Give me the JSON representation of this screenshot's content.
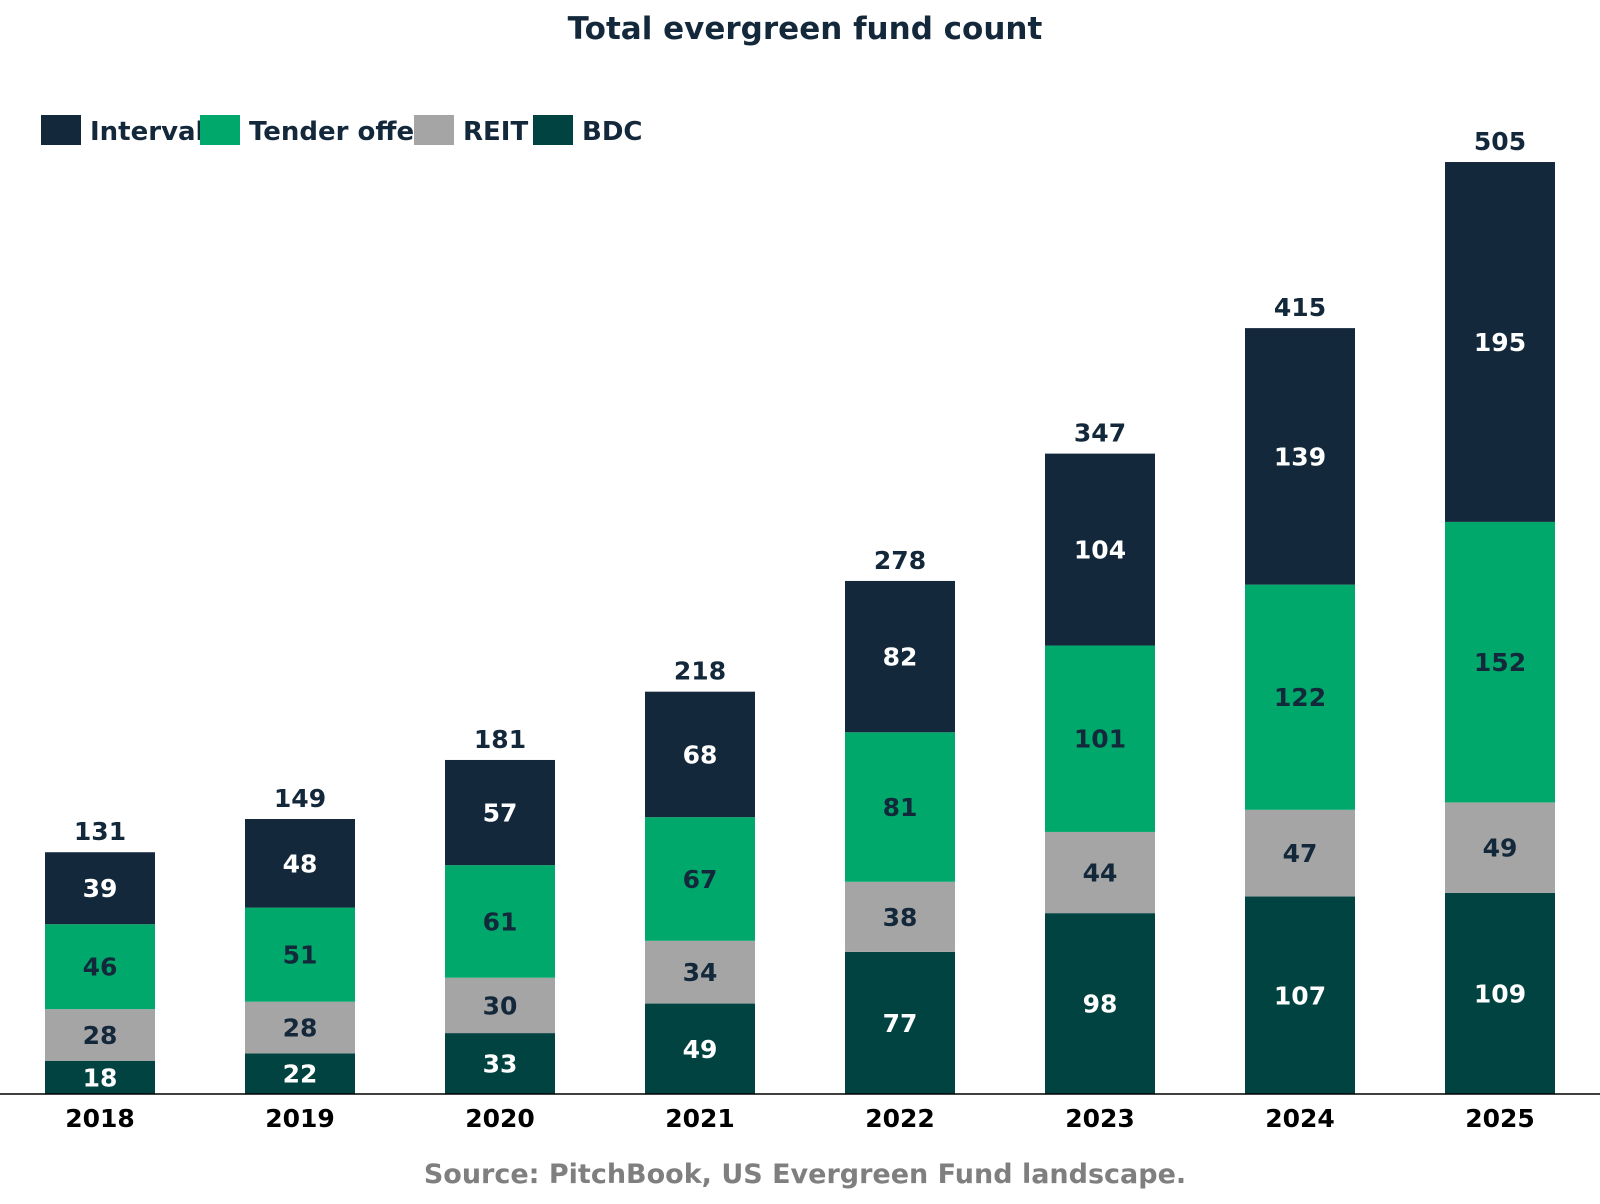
{
  "chart_data": {
    "type": "bar",
    "stacked": true,
    "title": "Total evergreen fund count",
    "categories": [
      "2018",
      "2019",
      "2020",
      "2021",
      "2022",
      "2023",
      "2024",
      "2025"
    ],
    "series": [
      {
        "name": "BDC",
        "color": "#004341",
        "label_color": "#ffffff",
        "values": [
          18,
          22,
          33,
          49,
          77,
          98,
          107,
          109
        ]
      },
      {
        "name": "REIT",
        "color": "#A5A5A5",
        "label_color": "#13283A",
        "values": [
          28,
          28,
          30,
          34,
          38,
          44,
          47,
          49
        ]
      },
      {
        "name": "Tender offer",
        "color": "#00A86B",
        "label_color": "#13283A",
        "values": [
          46,
          51,
          61,
          67,
          81,
          101,
          122,
          152
        ]
      },
      {
        "name": "Interval",
        "color": "#13283A",
        "label_color": "#ffffff",
        "values": [
          39,
          48,
          57,
          68,
          82,
          104,
          139,
          195
        ]
      }
    ],
    "totals": [
      131,
      149,
      181,
      218,
      278,
      347,
      415,
      505
    ],
    "legend_order": [
      "Interval",
      "Tender offer",
      "REIT",
      "BDC"
    ],
    "legend_position": "top-left",
    "ylim": [
      0,
      510
    ],
    "grid": false,
    "xlabel": "",
    "ylabel": ""
  },
  "source": "Source: PitchBook, US Evergreen Fund landscape.",
  "colors": {
    "title": "#13283A",
    "axis": "#000000",
    "tick_label": "#000000",
    "total_label": "#13283A",
    "source": "#7F7F7F"
  }
}
